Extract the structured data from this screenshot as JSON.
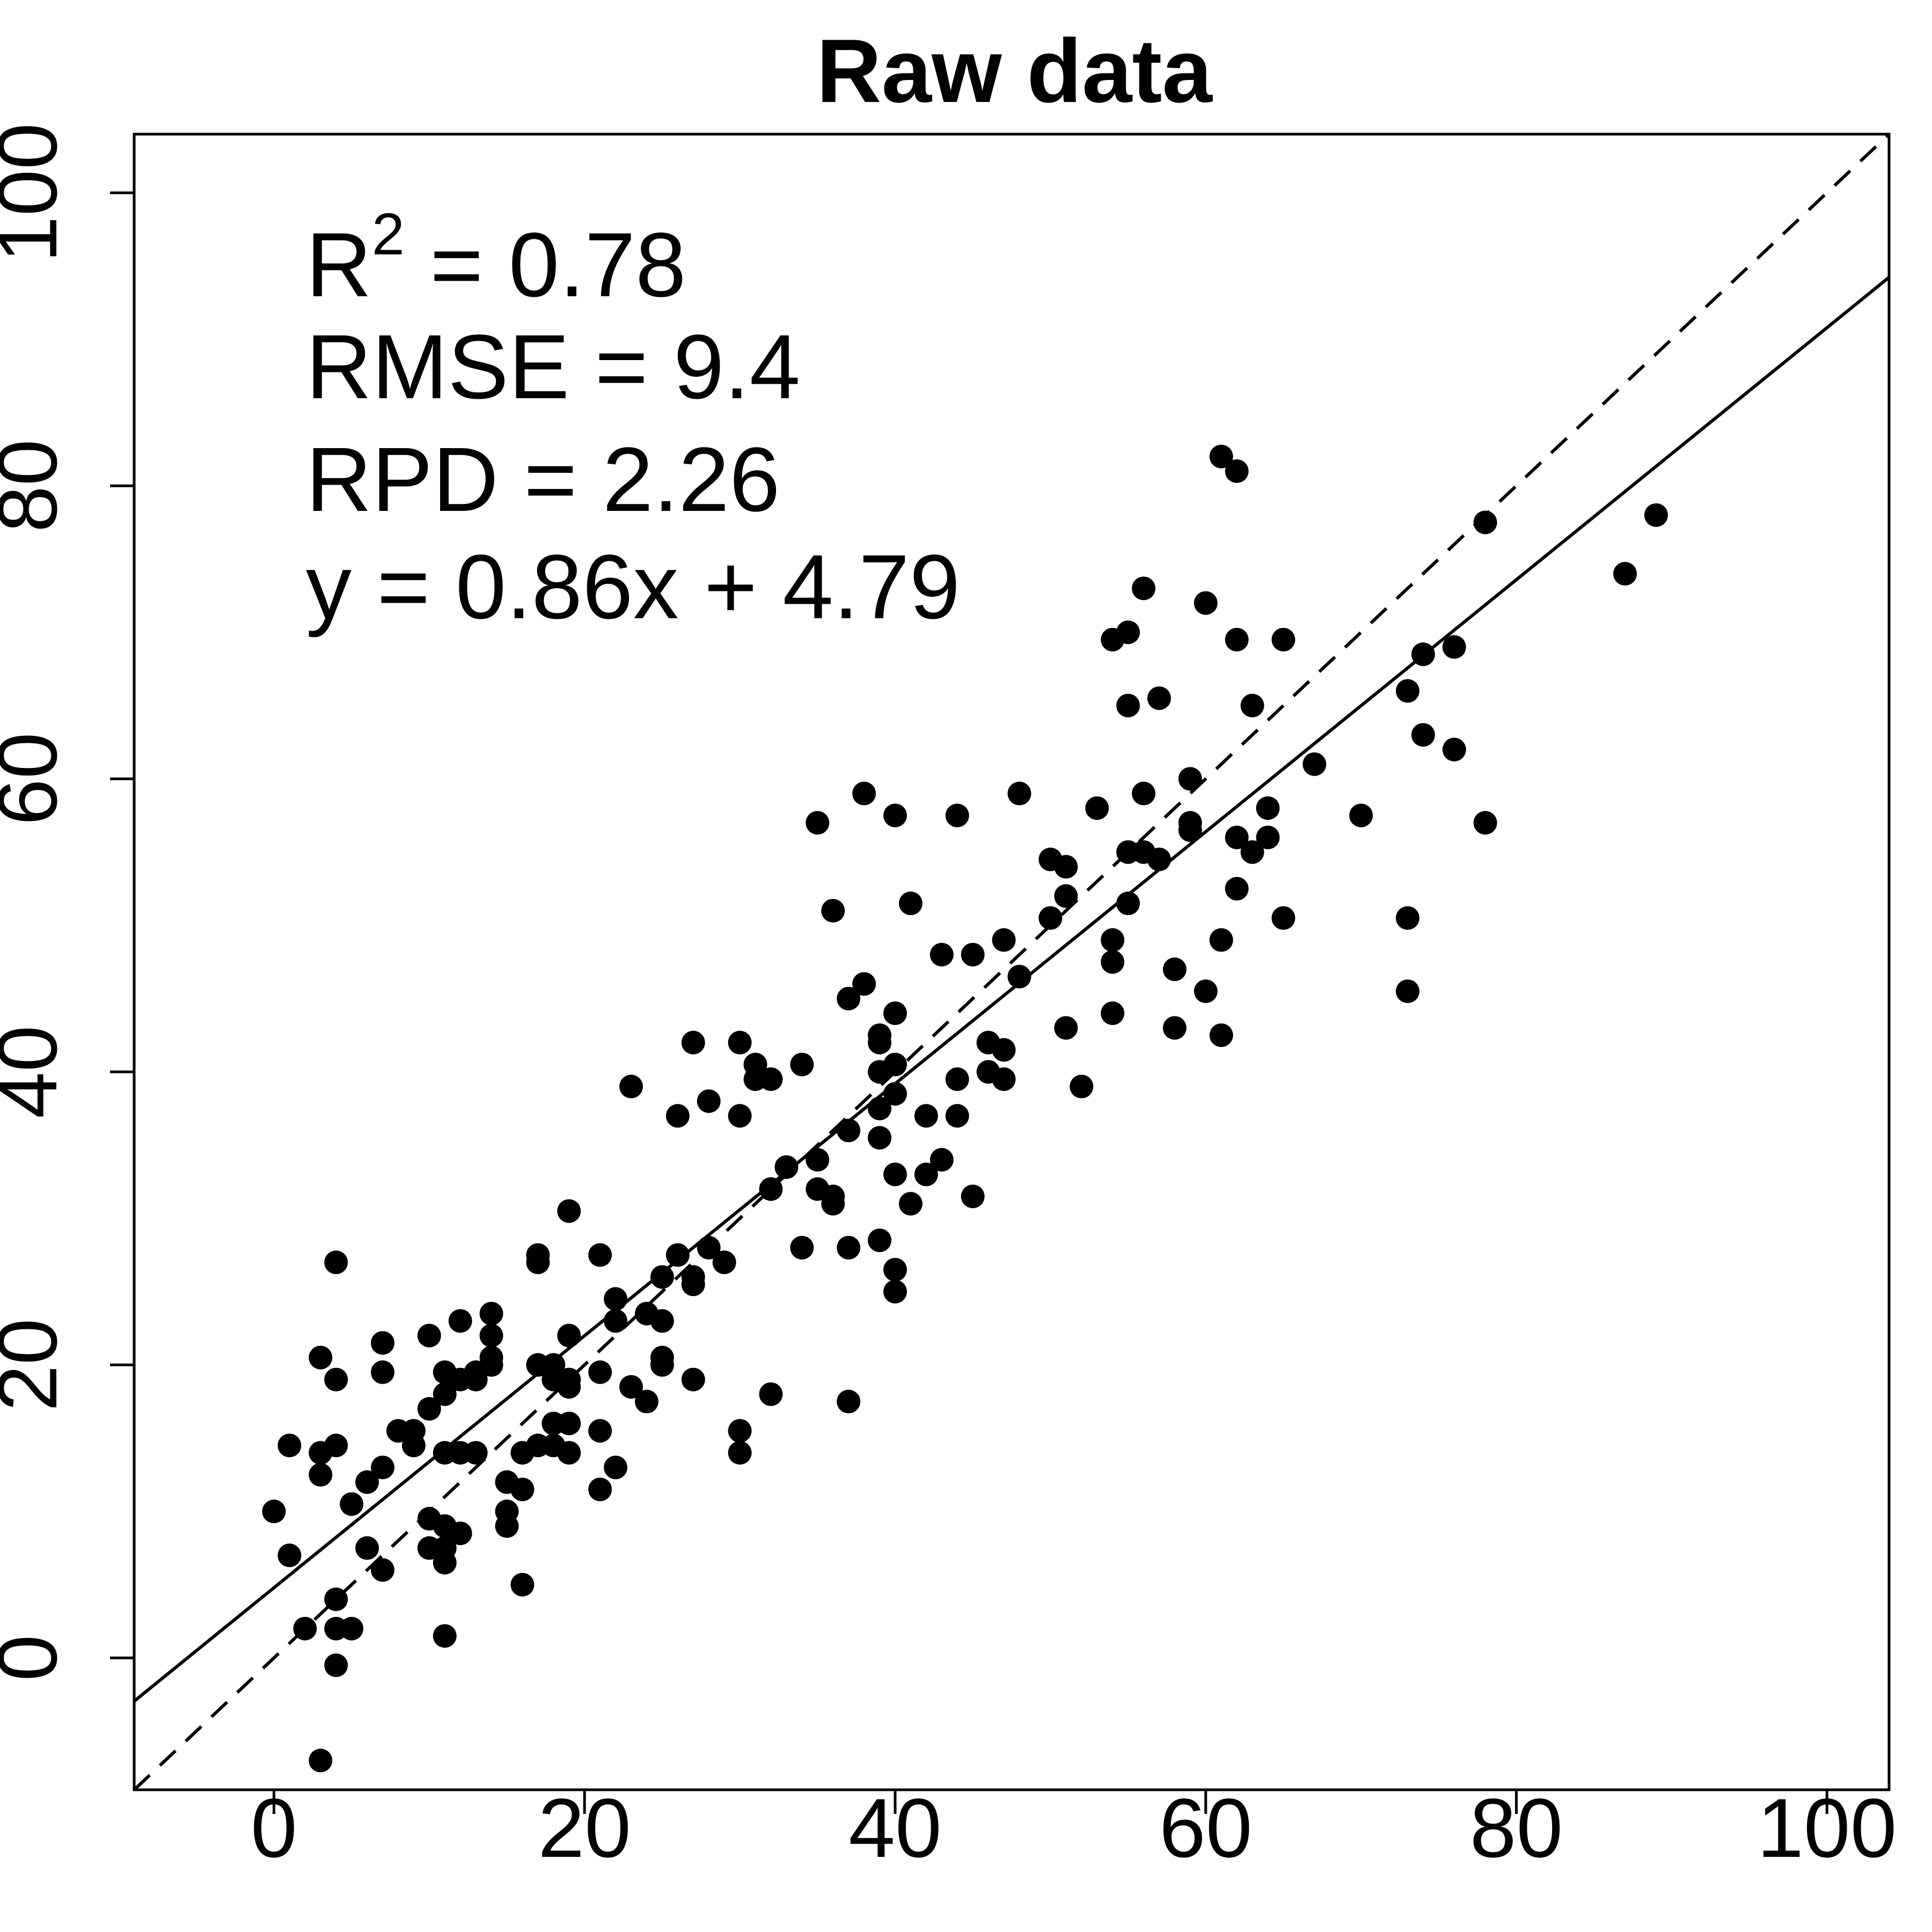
{
  "chart_data": {
    "type": "scatter",
    "title": "Raw data",
    "xlabel": "",
    "ylabel": "",
    "xlim": [
      -9,
      104
    ],
    "ylim": [
      -9,
      104
    ],
    "xticks": [
      0,
      20,
      40,
      60,
      80,
      100
    ],
    "yticks": [
      0,
      20,
      40,
      60,
      80,
      100
    ],
    "x_tick_labels": [
      "0",
      "20",
      "40",
      "60",
      "80",
      "100"
    ],
    "y_tick_labels": [
      "0",
      "20",
      "40",
      "60",
      "80",
      "100"
    ],
    "grid": false,
    "colors": {
      "points": "#000000",
      "lines": "#000000",
      "background": "#ffffff"
    },
    "annotations": {
      "r2_prefix": "R",
      "r2_superscript": "2",
      "r2_value": " = 0.78",
      "rmse": "RMSE = 9.4",
      "rpd": "RPD = 2.26",
      "equation": "y = 0.86x + 4.79"
    },
    "lines": [
      {
        "type": "fit",
        "style": "solid",
        "slope": 0.86,
        "intercept": 4.79
      },
      {
        "type": "identity",
        "style": "dashed",
        "slope": 1,
        "intercept": 0
      }
    ],
    "points": [
      [
        0,
        10
      ],
      [
        1,
        14.5
      ],
      [
        1,
        7
      ],
      [
        2,
        2
      ],
      [
        3,
        20.5
      ],
      [
        3,
        14
      ],
      [
        3,
        12.5
      ],
      [
        3,
        -7
      ],
      [
        4,
        27
      ],
      [
        4,
        19
      ],
      [
        4,
        14.5
      ],
      [
        4,
        4
      ],
      [
        4,
        2
      ],
      [
        4,
        -0.5
      ],
      [
        5,
        10.5
      ],
      [
        5,
        2
      ],
      [
        6,
        12
      ],
      [
        6,
        7.5
      ],
      [
        7,
        21.5
      ],
      [
        7,
        19.5
      ],
      [
        7,
        13
      ],
      [
        7,
        6
      ],
      [
        8,
        15.5
      ],
      [
        9,
        15.5
      ],
      [
        9,
        14.5
      ],
      [
        10,
        22
      ],
      [
        10,
        17
      ],
      [
        10,
        9.5
      ],
      [
        10,
        7.5
      ],
      [
        11,
        19.5
      ],
      [
        11,
        18
      ],
      [
        11,
        14
      ],
      [
        11,
        9
      ],
      [
        11,
        7.5
      ],
      [
        11,
        6.5
      ],
      [
        11,
        1.5
      ],
      [
        12,
        23
      ],
      [
        12,
        19
      ],
      [
        12,
        14
      ],
      [
        12,
        8.5
      ],
      [
        13,
        19.5
      ],
      [
        13,
        19
      ],
      [
        13,
        14
      ],
      [
        14,
        23.5
      ],
      [
        14,
        22
      ],
      [
        14,
        20.5
      ],
      [
        14,
        20
      ],
      [
        15,
        12
      ],
      [
        15,
        10
      ],
      [
        15,
        9
      ],
      [
        16,
        14
      ],
      [
        16,
        11.5
      ],
      [
        16,
        5
      ],
      [
        17,
        27.5
      ],
      [
        17,
        27
      ],
      [
        17,
        20
      ],
      [
        17,
        14.5
      ],
      [
        18,
        20
      ],
      [
        18,
        19
      ],
      [
        18,
        16
      ],
      [
        18,
        14.5
      ],
      [
        19,
        30.5
      ],
      [
        19,
        22
      ],
      [
        19,
        19
      ],
      [
        19,
        18.5
      ],
      [
        19,
        16
      ],
      [
        19,
        14
      ],
      [
        21,
        27.5
      ],
      [
        21,
        19.5
      ],
      [
        21,
        15.5
      ],
      [
        21,
        11.5
      ],
      [
        22,
        24.5
      ],
      [
        22,
        23
      ],
      [
        22,
        13
      ],
      [
        23,
        39
      ],
      [
        23,
        18.5
      ],
      [
        24,
        23.5
      ],
      [
        24,
        17.5
      ],
      [
        25,
        26
      ],
      [
        25,
        23
      ],
      [
        25,
        20.5
      ],
      [
        25,
        20
      ],
      [
        26,
        37
      ],
      [
        26,
        27.5
      ],
      [
        27,
        42
      ],
      [
        27,
        26
      ],
      [
        27,
        25.5
      ],
      [
        27,
        19
      ],
      [
        28,
        38
      ],
      [
        28,
        28
      ],
      [
        29,
        27
      ],
      [
        30,
        42
      ],
      [
        30,
        37
      ],
      [
        30,
        15.5
      ],
      [
        30,
        14
      ],
      [
        31,
        40.5
      ],
      [
        31,
        39.5
      ],
      [
        32,
        39.5
      ],
      [
        32,
        32
      ],
      [
        32,
        18
      ],
      [
        33,
        33.5
      ],
      [
        34,
        40.5
      ],
      [
        34,
        28
      ],
      [
        35,
        57
      ],
      [
        35,
        34
      ],
      [
        35,
        32
      ],
      [
        36,
        51
      ],
      [
        36,
        31.5
      ],
      [
        36,
        31
      ],
      [
        37,
        45
      ],
      [
        37,
        36
      ],
      [
        37,
        28
      ],
      [
        37,
        17.5
      ],
      [
        38,
        59
      ],
      [
        38,
        46
      ],
      [
        39,
        42.5
      ],
      [
        39,
        42
      ],
      [
        39,
        40
      ],
      [
        39,
        37.5
      ],
      [
        39,
        35.5
      ],
      [
        39,
        28.5
      ],
      [
        40,
        57.5
      ],
      [
        40,
        44
      ],
      [
        40,
        40.5
      ],
      [
        40,
        38.5
      ],
      [
        40,
        33
      ],
      [
        40,
        26.5
      ],
      [
        40,
        25
      ],
      [
        41,
        51.5
      ],
      [
        41,
        31
      ],
      [
        42,
        37
      ],
      [
        42,
        33
      ],
      [
        43,
        48
      ],
      [
        43,
        34
      ],
      [
        44,
        57.5
      ],
      [
        44,
        39.5
      ],
      [
        44,
        37
      ],
      [
        45,
        48
      ],
      [
        45,
        31.5
      ],
      [
        46,
        42
      ],
      [
        46,
        40
      ],
      [
        47,
        49
      ],
      [
        47,
        41.5
      ],
      [
        47,
        39.5
      ],
      [
        48,
        59
      ],
      [
        48,
        46.5
      ],
      [
        50,
        54.5
      ],
      [
        50,
        50.5
      ],
      [
        51,
        54
      ],
      [
        51,
        52
      ],
      [
        51,
        43
      ],
      [
        52,
        39
      ],
      [
        53,
        58
      ],
      [
        54,
        69.5
      ],
      [
        54,
        49
      ],
      [
        54,
        47.5
      ],
      [
        54,
        44
      ],
      [
        55,
        70
      ],
      [
        55,
        65
      ],
      [
        55,
        55
      ],
      [
        55,
        51.5
      ],
      [
        56,
        73
      ],
      [
        56,
        59
      ],
      [
        56,
        55
      ],
      [
        57,
        65.5
      ],
      [
        57,
        54.5
      ],
      [
        58,
        47
      ],
      [
        58,
        43
      ],
      [
        59,
        60
      ],
      [
        59,
        57
      ],
      [
        59,
        56.5
      ],
      [
        60,
        72
      ],
      [
        60,
        45.5
      ],
      [
        61,
        82
      ],
      [
        61,
        49
      ],
      [
        61,
        42.5
      ],
      [
        62,
        81
      ],
      [
        62,
        69.5
      ],
      [
        62,
        56
      ],
      [
        62,
        52.5
      ],
      [
        63,
        65
      ],
      [
        63,
        55
      ],
      [
        64,
        58
      ],
      [
        64,
        56
      ],
      [
        65,
        69.5
      ],
      [
        65,
        50.5
      ],
      [
        67,
        61
      ],
      [
        70,
        57.5
      ],
      [
        73,
        66
      ],
      [
        73,
        50.5
      ],
      [
        73,
        45.5
      ],
      [
        74,
        68.5
      ],
      [
        74,
        63
      ],
      [
        76,
        69
      ],
      [
        76,
        62
      ],
      [
        78,
        77.5
      ],
      [
        78,
        57
      ],
      [
        87,
        74
      ],
      [
        89,
        78
      ]
    ]
  }
}
